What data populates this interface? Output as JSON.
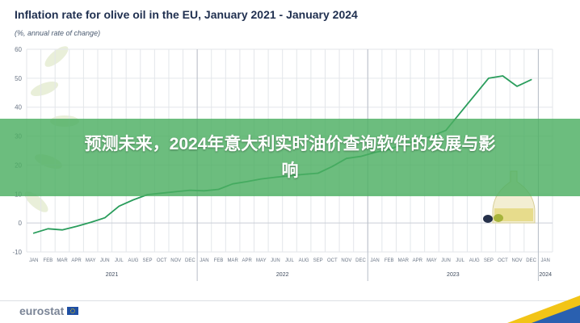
{
  "header": {
    "title": "Inflation rate for olive oil in the EU, January 2021 - January 2024",
    "subtitle": "(%, annual rate of change)"
  },
  "banner": {
    "text": "预测未来，2024年意大利实时油价查询软件的发展与影响"
  },
  "footer": {
    "brand": "eurostat"
  },
  "colors": {
    "line": "#2a9d5c",
    "grid": "#e3e6ea",
    "axis_text": "#6b7686",
    "banner": "#4caf62"
  },
  "chart_data": {
    "type": "line",
    "title": "Inflation rate for olive oil in the EU, January 2021 - January 2024",
    "subtitle": "(%, annual rate of change)",
    "ylim": [
      -10,
      60
    ],
    "yticks": [
      -10,
      0,
      10,
      20,
      30,
      40,
      50,
      60
    ],
    "grid": true,
    "categories": [
      "JAN",
      "FEB",
      "MAR",
      "APR",
      "MAY",
      "JUN",
      "JUL",
      "AUG",
      "SEP",
      "OCT",
      "NOV",
      "DEC",
      "JAN",
      "FEB",
      "MAR",
      "APR",
      "MAY",
      "JUN",
      "JUL",
      "AUG",
      "SEP",
      "OCT",
      "NOV",
      "DEC",
      "JAN",
      "FEB",
      "MAR",
      "APR",
      "MAY",
      "JUN",
      "JUL",
      "AUG",
      "SEP",
      "OCT",
      "NOV",
      "DEC",
      "JAN"
    ],
    "years": [
      {
        "label": "2021",
        "start": 0,
        "end": 11
      },
      {
        "label": "2022",
        "start": 12,
        "end": 23
      },
      {
        "label": "2023",
        "start": 24,
        "end": 35
      },
      {
        "label": "2024",
        "start": 36,
        "end": 36
      }
    ],
    "series": [
      {
        "values": [
          -3.5,
          -2,
          -2.4,
          -1.2,
          0.2,
          1.8,
          5.8,
          8,
          9.8,
          10.3,
          10.8,
          11.3,
          11.1,
          11.6,
          13.5,
          14.3,
          15.2,
          15.8,
          16.3,
          16.8,
          17.2,
          19.5,
          22.3,
          23,
          24.4,
          25.4,
          27.3,
          28.3,
          30,
          32,
          38,
          44,
          50,
          50.8,
          47.2,
          49.5,
          null
        ]
      }
    ]
  }
}
